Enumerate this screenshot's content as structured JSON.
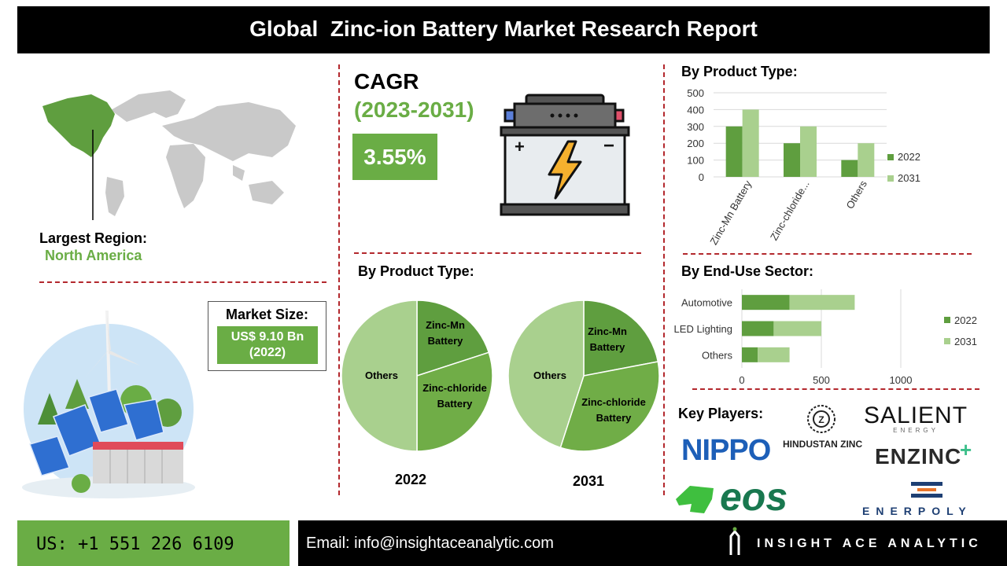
{
  "header": {
    "title": "Global  Zinc-ion Battery Market Research Report"
  },
  "region": {
    "label": "Largest Region:",
    "value": "North America"
  },
  "market_size": {
    "label": "Market Size:",
    "value_line1": "US$ 9.10 Bn",
    "value_line2": "(2022)"
  },
  "cagr": {
    "label": "CAGR",
    "period": "(2023-2031)",
    "value": "3.55%"
  },
  "pies": {
    "title": "By Product Type:",
    "labels": {
      "others": "Others",
      "zinc_mn_1": "Zinc-Mn",
      "zinc_mn_2": "Battery",
      "zinc_cl_1": "Zinc-chloride",
      "zinc_cl_2": "Battery"
    },
    "year_2022": "2022",
    "year_2031": "2031"
  },
  "bar_product": {
    "title": "By Product Type:",
    "yticks": [
      "500",
      "400",
      "300",
      "200",
      "100",
      "0"
    ],
    "categories": [
      "Zinc-Mn Battery",
      "Zinc-chloride...",
      "Others"
    ],
    "legend": [
      "2022",
      "2031"
    ]
  },
  "bar_enduse": {
    "title": "By End-Use Sector:",
    "categories": [
      "Automotive",
      "LED Lighting",
      "Others"
    ],
    "xticks": [
      "0",
      "500",
      "1000"
    ],
    "legend": [
      "2022",
      "2031"
    ]
  },
  "key_players": {
    "title": "Key Players:",
    "logos": {
      "nippo": "NIPPO",
      "hindustan": "HINDUSTAN ZINC",
      "salient": "SALIENT",
      "salient_sub": "ENERGY",
      "enzinc": "ENZINC",
      "eos": "eos",
      "enerpoly": "ENERPOLY"
    }
  },
  "footer": {
    "phone": "US: +1 551 226 6109",
    "email": "Email: info@insightaceanalytic.com",
    "brand": "INSIGHT ACE ANALYTIC"
  },
  "colors": {
    "dark_green": "#5f9e3f",
    "light_green": "#a9d08e",
    "accent_green": "#6aad45",
    "dash_red": "#b3282d",
    "black": "#000000"
  },
  "chart_data": [
    {
      "type": "pie",
      "title": "By Product Type:",
      "xlabel": "2022",
      "categories": [
        "Zinc-Mn Battery",
        "Zinc-chloride Battery",
        "Others"
      ],
      "values": [
        20,
        30,
        50
      ]
    },
    {
      "type": "pie",
      "title": "By Product Type:",
      "xlabel": "2031",
      "categories": [
        "Zinc-Mn Battery",
        "Zinc-chloride Battery",
        "Others"
      ],
      "values": [
        22,
        33,
        45
      ]
    },
    {
      "type": "bar",
      "title": "By Product Type:",
      "categories": [
        "Zinc-Mn Battery",
        "Zinc-chloride...",
        "Others"
      ],
      "series": [
        {
          "name": "2022",
          "values": [
            300,
            200,
            100
          ]
        },
        {
          "name": "2031",
          "values": [
            400,
            300,
            200
          ]
        }
      ],
      "ylim": [
        0,
        500
      ],
      "grid": true,
      "legend": "right"
    },
    {
      "type": "bar",
      "orientation": "horizontal",
      "stacked": true,
      "title": "By End-Use Sector:",
      "categories": [
        "Automotive",
        "LED Lighting",
        "Others"
      ],
      "series": [
        {
          "name": "2022",
          "values": [
            300,
            200,
            100
          ]
        },
        {
          "name": "2031",
          "values": [
            410,
            300,
            200
          ]
        }
      ],
      "xlim": [
        0,
        1000
      ],
      "grid": true,
      "legend": "right"
    }
  ]
}
